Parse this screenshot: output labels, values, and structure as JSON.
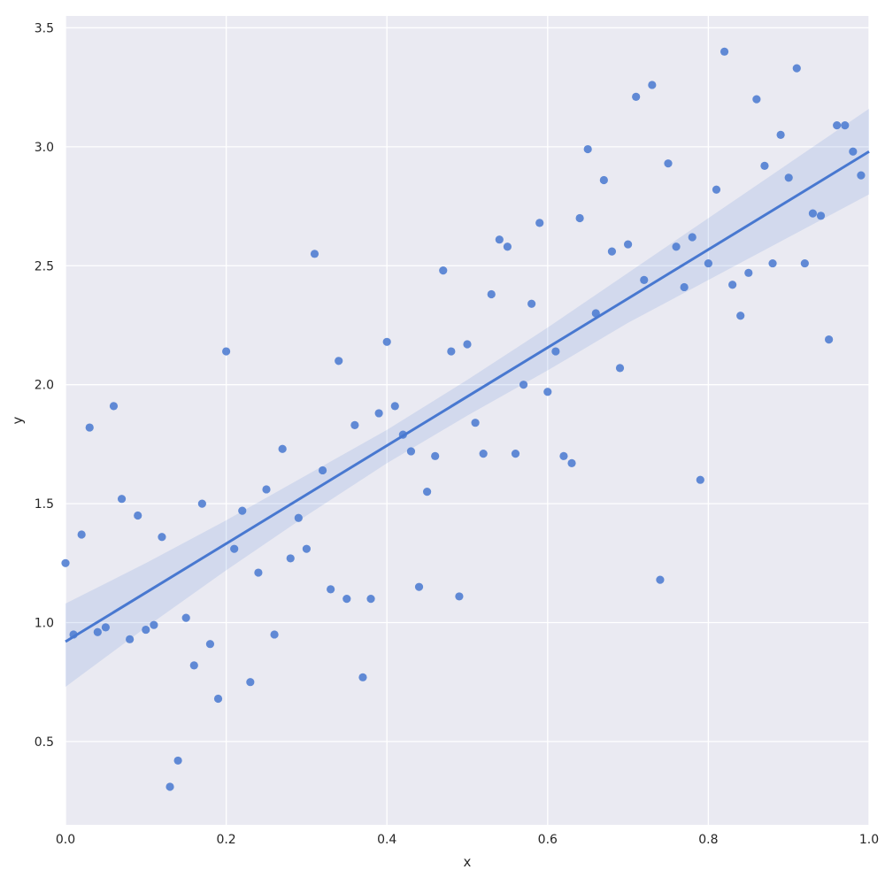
{
  "chart_data": {
    "type": "scatter",
    "xlabel": "x",
    "ylabel": "y",
    "xlim": [
      0.0,
      1.0
    ],
    "ylim": [
      0.15,
      3.55
    ],
    "xticks": [
      0.0,
      0.2,
      0.4,
      0.6,
      0.8,
      1.0
    ],
    "yticks": [
      0.5,
      1.0,
      1.5,
      2.0,
      2.5,
      3.0,
      3.5
    ],
    "xtick_labels": [
      "0.0",
      "0.2",
      "0.4",
      "0.6",
      "0.8",
      "1.0"
    ],
    "ytick_labels": [
      "0.5",
      "1.0",
      "1.5",
      "2.0",
      "2.5",
      "3.0",
      "3.5"
    ],
    "grid": true,
    "colors": {
      "background": "#eaeaf2",
      "grid": "#ffffff",
      "points": "#4878d0",
      "regression_line": "#4878d0",
      "confidence_band": "#4878d0"
    },
    "points": [
      [
        0.0,
        1.25
      ],
      [
        0.01,
        0.95
      ],
      [
        0.02,
        1.37
      ],
      [
        0.03,
        1.82
      ],
      [
        0.04,
        0.96
      ],
      [
        0.05,
        0.98
      ],
      [
        0.06,
        1.91
      ],
      [
        0.07,
        1.52
      ],
      [
        0.08,
        0.93
      ],
      [
        0.09,
        1.45
      ],
      [
        0.1,
        0.97
      ],
      [
        0.11,
        0.99
      ],
      [
        0.12,
        1.36
      ],
      [
        0.13,
        0.31
      ],
      [
        0.14,
        0.42
      ],
      [
        0.15,
        1.02
      ],
      [
        0.16,
        0.82
      ],
      [
        0.17,
        1.5
      ],
      [
        0.18,
        0.91
      ],
      [
        0.19,
        0.68
      ],
      [
        0.2,
        2.14
      ],
      [
        0.21,
        1.31
      ],
      [
        0.22,
        1.47
      ],
      [
        0.23,
        0.75
      ],
      [
        0.24,
        1.21
      ],
      [
        0.25,
        1.56
      ],
      [
        0.26,
        0.95
      ],
      [
        0.27,
        1.73
      ],
      [
        0.28,
        1.27
      ],
      [
        0.29,
        1.44
      ],
      [
        0.3,
        1.31
      ],
      [
        0.31,
        2.55
      ],
      [
        0.32,
        1.64
      ],
      [
        0.33,
        1.14
      ],
      [
        0.34,
        2.1
      ],
      [
        0.35,
        1.1
      ],
      [
        0.36,
        1.83
      ],
      [
        0.37,
        0.77
      ],
      [
        0.38,
        1.1
      ],
      [
        0.39,
        1.88
      ],
      [
        0.4,
        2.18
      ],
      [
        0.41,
        1.91
      ],
      [
        0.42,
        1.79
      ],
      [
        0.43,
        1.72
      ],
      [
        0.44,
        1.15
      ],
      [
        0.45,
        1.55
      ],
      [
        0.46,
        1.7
      ],
      [
        0.47,
        2.48
      ],
      [
        0.48,
        2.14
      ],
      [
        0.49,
        1.11
      ],
      [
        0.5,
        2.17
      ],
      [
        0.51,
        1.84
      ],
      [
        0.52,
        1.71
      ],
      [
        0.53,
        2.38
      ],
      [
        0.54,
        2.61
      ],
      [
        0.55,
        2.58
      ],
      [
        0.56,
        1.71
      ],
      [
        0.57,
        2.0
      ],
      [
        0.58,
        2.34
      ],
      [
        0.59,
        2.68
      ],
      [
        0.6,
        1.97
      ],
      [
        0.61,
        2.14
      ],
      [
        0.62,
        1.7
      ],
      [
        0.63,
        1.67
      ],
      [
        0.64,
        2.7
      ],
      [
        0.65,
        2.99
      ],
      [
        0.66,
        2.3
      ],
      [
        0.67,
        2.86
      ],
      [
        0.68,
        2.56
      ],
      [
        0.69,
        2.07
      ],
      [
        0.7,
        2.59
      ],
      [
        0.71,
        3.21
      ],
      [
        0.72,
        2.44
      ],
      [
        0.73,
        3.26
      ],
      [
        0.74,
        1.18
      ],
      [
        0.75,
        2.93
      ],
      [
        0.76,
        2.58
      ],
      [
        0.77,
        2.41
      ],
      [
        0.78,
        2.62
      ],
      [
        0.79,
        1.6
      ],
      [
        0.8,
        2.51
      ],
      [
        0.81,
        2.82
      ],
      [
        0.82,
        3.4
      ],
      [
        0.83,
        2.42
      ],
      [
        0.84,
        2.29
      ],
      [
        0.85,
        2.47
      ],
      [
        0.86,
        3.2
      ],
      [
        0.87,
        2.92
      ],
      [
        0.88,
        2.51
      ],
      [
        0.89,
        3.05
      ],
      [
        0.9,
        2.87
      ],
      [
        0.91,
        3.33
      ],
      [
        0.92,
        2.51
      ],
      [
        0.93,
        2.72
      ],
      [
        0.94,
        2.71
      ],
      [
        0.95,
        2.19
      ],
      [
        0.96,
        3.09
      ],
      [
        0.97,
        3.09
      ],
      [
        0.98,
        2.98
      ],
      [
        0.99,
        2.88
      ]
    ],
    "regression": {
      "x": [
        0.0,
        1.0
      ],
      "y": [
        0.92,
        2.98
      ]
    },
    "confidence_band": {
      "x": [
        0.0,
        0.1,
        0.2,
        0.3,
        0.4,
        0.5,
        0.6,
        0.7,
        0.8,
        0.9,
        1.0
      ],
      "lower": [
        0.73,
        0.98,
        1.22,
        1.45,
        1.67,
        1.87,
        2.06,
        2.26,
        2.44,
        2.62,
        2.8
      ],
      "upper": [
        1.08,
        1.25,
        1.43,
        1.62,
        1.81,
        2.02,
        2.24,
        2.47,
        2.7,
        2.93,
        3.16
      ]
    }
  }
}
